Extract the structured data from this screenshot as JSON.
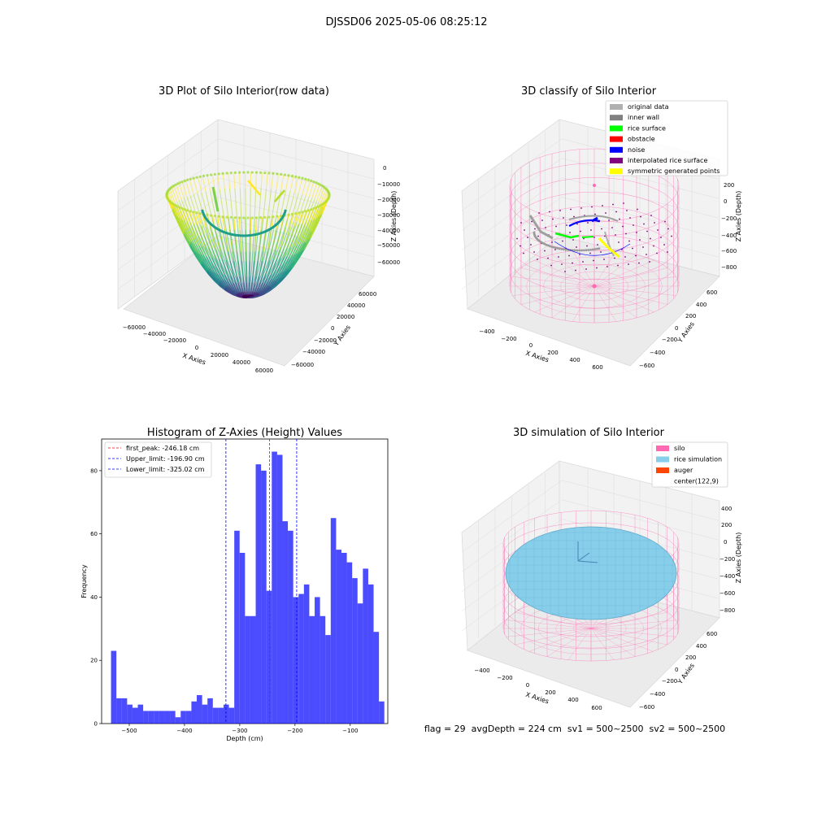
{
  "suptitle": "DJSSD06 2025-05-06 08:25:12",
  "panel_raw": {
    "title": "3D Plot of Silo Interior(row data)",
    "xlabel": "X Axies",
    "ylabel": "Y Axies",
    "zlabel": "Z Axies (Depth)",
    "x_ticks": [
      "−60000",
      "−40000",
      "−20000",
      "0",
      "20000",
      "40000",
      "60000"
    ],
    "y_ticks": [
      "60000",
      "40000",
      "20000",
      "0",
      "−20000",
      "−40000",
      "−60000"
    ],
    "z_ticks": [
      "0",
      "−10000",
      "−20000",
      "−30000",
      "−40000",
      "−50000",
      "−60000"
    ]
  },
  "panel_classify": {
    "title": "3D classify of Silo Interior",
    "xlabel": "X Axies",
    "ylabel": "Y Axies",
    "zlabel": "Z Axies (Depth)",
    "x_ticks": [
      "−400",
      "−200",
      "0",
      "200",
      "400",
      "600"
    ],
    "y_ticks": [
      "600",
      "400",
      "200",
      "0",
      "−200",
      "−400",
      "−600"
    ],
    "z_ticks": [
      "200",
      "0",
      "−200",
      "−400",
      "−600",
      "−800"
    ],
    "legend": [
      {
        "label": "original data",
        "color": "#b0b0b0"
      },
      {
        "label": "inner wall",
        "color": "#808080"
      },
      {
        "label": "rice surface",
        "color": "#00ff00"
      },
      {
        "label": "obstacle",
        "color": "#ff0000"
      },
      {
        "label": "noise",
        "color": "#0000ff"
      },
      {
        "label": "interpolated rice surface",
        "color": "#800080"
      },
      {
        "label": "symmetric generated points",
        "color": "#ffff00"
      }
    ]
  },
  "panel_sim": {
    "title": "3D simulation of Silo Interior",
    "xlabel": "X Axies",
    "ylabel": "Y Axies",
    "zlabel": "Z Axies (Depth)",
    "x_ticks": [
      "−400",
      "−200",
      "0",
      "200",
      "400",
      "600"
    ],
    "y_ticks": [
      "600",
      "400",
      "200",
      "0",
      "−200",
      "−400",
      "−600"
    ],
    "z_ticks": [
      "400",
      "200",
      "0",
      "−200",
      "−400",
      "−600",
      "−800"
    ],
    "legend": [
      {
        "label": "silo",
        "color": "#ff69b4"
      },
      {
        "label": "rice simulation",
        "color": "#87ceeb"
      },
      {
        "label": "auger",
        "color": "#ff4500"
      },
      {
        "label": "center(122,9)",
        "color": "none"
      }
    ]
  },
  "footer": "flag = 29  avgDepth = 224 cm  sv1 = 500~2500  sv2 = 500~2500",
  "chart_data": [
    {
      "type": "bar",
      "title": "Histogram of Z-Axies (Height) Values",
      "xlabel": "Depth (cm)",
      "ylabel": "Frequency",
      "bar_color": "#0000ff",
      "bar_alpha": 0.7,
      "x_start": -533,
      "bin_width": 9.7,
      "values": [
        23,
        8,
        8,
        6,
        5,
        6,
        4,
        4,
        4,
        4,
        4,
        4,
        2,
        4,
        4,
        7,
        9,
        6,
        8,
        5,
        5,
        6,
        5,
        61,
        54,
        34,
        34,
        82,
        80,
        42,
        86,
        85,
        64,
        61,
        40,
        41,
        44,
        34,
        40,
        34,
        28,
        65,
        55,
        54,
        51,
        46,
        38,
        49,
        44,
        29,
        7
      ],
      "xlim": [
        -550,
        -32
      ],
      "ylim": [
        0,
        90
      ],
      "x_ticks": [
        -500,
        -400,
        -300,
        -200,
        -100
      ],
      "y_ticks": [
        0,
        20,
        40,
        60,
        80
      ],
      "vlines": [
        {
          "label": "first_peak: -246.18 cm",
          "x": -246.18,
          "color": "#ff0000"
        },
        {
          "label": "Upper_limit: -196.90 cm",
          "x": -196.9,
          "color": "#0000ff"
        },
        {
          "label": "Lower_limit: -325.02 cm",
          "x": -325.02,
          "color": "#0000ff"
        }
      ],
      "legend_position": "upper-left"
    }
  ]
}
